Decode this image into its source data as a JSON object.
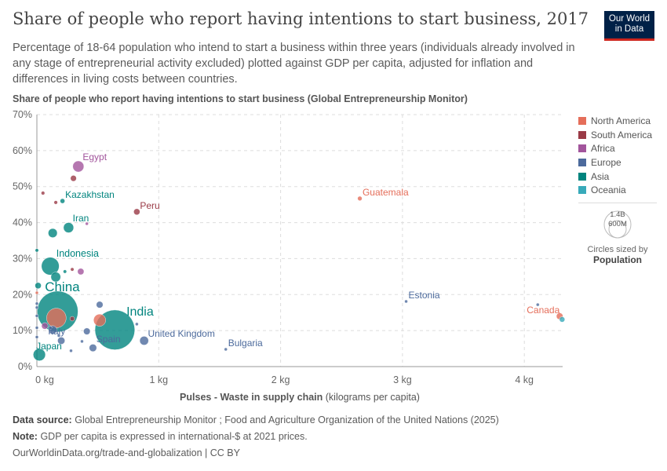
{
  "header": {
    "title": "Share of people who report having intentions to start business, 2017",
    "subtitle": "Percentage of 18-64 population who intend to start a business within three years (individuals already involved in any stage of entrepreneurial activity excluded) plotted against GDP per capita, adjusted for inflation and differences in living costs between countries.",
    "logo": "Our World in Data"
  },
  "legend": {
    "items": [
      {
        "name": "North America",
        "color": "#e56e5a"
      },
      {
        "name": "South America",
        "color": "#9a3a46"
      },
      {
        "name": "Africa",
        "color": "#a2559c"
      },
      {
        "name": "Europe",
        "color": "#4c6a9c"
      },
      {
        "name": "Asia",
        "color": "#00847e"
      },
      {
        "name": "Oceania",
        "color": "#38aaba"
      }
    ],
    "size_big": "1.4B",
    "size_small": "600M",
    "size_caption": "Circles sized by",
    "size_var": "Population"
  },
  "footer": {
    "source_label": "Data source:",
    "source": "Global Entrepreneurship Monitor ; Food and Agriculture Organization of the United Nations (2025)",
    "note_label": "Note:",
    "note": "GDP per capita is expressed in international-$ at 2021 prices.",
    "url": "OurWorldinData.org/trade-and-globalization | CC BY"
  },
  "chart_data": {
    "type": "scatter",
    "ylabel": "Share of people who report having intentions to start business (Global Entrepreneurship Monitor)",
    "xlabel": "Pulses - Waste in supply chain",
    "xlabel_unit": "(kilograms per capita)",
    "xlim": [
      0,
      4.3
    ],
    "ylim": [
      0,
      70
    ],
    "grid": true,
    "legend_position": "right",
    "xticks": [
      {
        "v": 0,
        "l": "0 kg"
      },
      {
        "v": 1,
        "l": "1 kg"
      },
      {
        "v": 2,
        "l": "2 kg"
      },
      {
        "v": 3,
        "l": "3 kg"
      },
      {
        "v": 4,
        "l": "4 kg"
      }
    ],
    "yticks": [
      {
        "v": 0,
        "l": "0%"
      },
      {
        "v": 10,
        "l": "10%"
      },
      {
        "v": 20,
        "l": "20%"
      },
      {
        "v": 30,
        "l": "30%"
      },
      {
        "v": 40,
        "l": "40%"
      },
      {
        "v": 50,
        "l": "50%"
      },
      {
        "v": 60,
        "l": "60%"
      },
      {
        "v": 70,
        "l": "70%"
      }
    ],
    "points": [
      {
        "label": "Egypt",
        "region": "Africa",
        "x": 0.34,
        "y": 55.6,
        "pop": 105000000
      },
      {
        "region": "South America",
        "x": 0.3,
        "y": 52.3,
        "pop": 30000000
      },
      {
        "region": "South America",
        "x": 0.05,
        "y": 48.2,
        "pop": 11000000
      },
      {
        "region": "South America",
        "x": 0.155,
        "y": 45.6,
        "pop": 11000000
      },
      {
        "label": "Kazakhstan",
        "region": "Asia",
        "x": 0.21,
        "y": 46.0,
        "pop": 19000000
      },
      {
        "label": "Peru",
        "region": "South America",
        "x": 0.82,
        "y": 43.0,
        "pop": 33000000
      },
      {
        "label": "Guatemala",
        "region": "North America",
        "x": 2.65,
        "y": 46.7,
        "pop": 17000000
      },
      {
        "label": "Iran",
        "region": "Asia",
        "x": 0.26,
        "y": 38.6,
        "pop": 88000000
      },
      {
        "region": "Asia",
        "x": 0.13,
        "y": 37.1,
        "pop": 70000000
      },
      {
        "region": "Africa",
        "x": 0.41,
        "y": 39.7,
        "pop": 3000000
      },
      {
        "region": "Asia",
        "x": 0.0,
        "y": 32.3,
        "pop": 10000000
      },
      {
        "label": "Indonesia",
        "region": "Asia",
        "x": 0.11,
        "y": 27.9,
        "pop": 265000000
      },
      {
        "region": "Asia",
        "x": 0.155,
        "y": 24.9,
        "pop": 80000000
      },
      {
        "region": "South America",
        "x": 0.29,
        "y": 27.0,
        "pop": 10000000
      },
      {
        "region": "Asia",
        "x": 0.23,
        "y": 26.4,
        "pop": 10000000
      },
      {
        "region": "Africa",
        "x": 0.36,
        "y": 26.4,
        "pop": 35000000
      },
      {
        "region": "Asia",
        "x": 0.01,
        "y": 22.5,
        "pop": 33000000
      },
      {
        "region": "North America",
        "x": 0.0,
        "y": 20.5,
        "pop": 4000000
      },
      {
        "region": "Europe",
        "x": 0.0,
        "y": 17.5,
        "pop": 5000000
      },
      {
        "region": "Europe",
        "x": 0.0,
        "y": 16.4,
        "pop": 5000000
      },
      {
        "region": "Europe",
        "x": 0.0,
        "y": 14.1,
        "pop": 5000000
      },
      {
        "region": "Europe",
        "x": 0.0,
        "y": 10.8,
        "pop": 5000000
      },
      {
        "region": "Europe",
        "x": 0.0,
        "y": 8.2,
        "pop": 5000000
      },
      {
        "region": "Europe",
        "x": 0.515,
        "y": 17.2,
        "pop": 38000000
      },
      {
        "label": "China",
        "region": "Asia",
        "x": 0.17,
        "y": 15.3,
        "pop": 1410000000
      },
      {
        "region": "North America",
        "x": 0.16,
        "y": 13.5,
        "pop": 325000000
      },
      {
        "region": "South America",
        "x": 0.29,
        "y": 13.3,
        "pop": 18000000
      },
      {
        "region": "North America",
        "x": 0.515,
        "y": 12.9,
        "pop": 125000000
      },
      {
        "label": "India",
        "region": "Asia",
        "x": 0.64,
        "y": 10.2,
        "pop": 1340000000
      },
      {
        "region": "Europe",
        "x": 0.82,
        "y": 11.8,
        "pop": 5000000
      },
      {
        "region": "Africa",
        "x": 0.065,
        "y": 11.3,
        "pop": 36000000
      },
      {
        "label": "Italy",
        "region": "Europe",
        "x": 0.13,
        "y": 10.2,
        "pop": 60000000
      },
      {
        "region": "Europe",
        "x": 0.11,
        "y": 10.8,
        "pop": 10000000
      },
      {
        "region": "Europe",
        "x": 0.18,
        "y": 8.6,
        "pop": 5000000
      },
      {
        "region": "Europe",
        "x": 0.2,
        "y": 7.2,
        "pop": 45000000
      },
      {
        "region": "Europe",
        "x": 0.41,
        "y": 9.8,
        "pop": 38000000
      },
      {
        "region": "Europe",
        "x": 0.37,
        "y": 7.0,
        "pop": 5000000
      },
      {
        "label": "United Kingdom",
        "region": "Europe",
        "x": 0.88,
        "y": 7.2,
        "pop": 66000000
      },
      {
        "label": "Spain",
        "region": "Europe",
        "x": 0.46,
        "y": 5.2,
        "pop": 47000000
      },
      {
        "region": "Europe",
        "x": 0.28,
        "y": 4.4,
        "pop": 5000000
      },
      {
        "label": "Bulgaria",
        "region": "Europe",
        "x": 1.55,
        "y": 4.8,
        "pop": 7000000
      },
      {
        "label": "Japan",
        "region": "Asia",
        "x": 0.02,
        "y": 3.3,
        "pop": 127000000
      },
      {
        "label": "Estonia",
        "region": "Europe",
        "x": 3.03,
        "y": 18.1,
        "pop": 1300000
      },
      {
        "region": "Europe",
        "x": 4.11,
        "y": 17.2,
        "pop": 2000000
      },
      {
        "label": "Canada",
        "region": "North America",
        "x": 4.29,
        "y": 14.0,
        "pop": 37000000
      },
      {
        "region": "Oceania",
        "x": 4.31,
        "y": 13.1,
        "pop": 25000000
      }
    ]
  }
}
